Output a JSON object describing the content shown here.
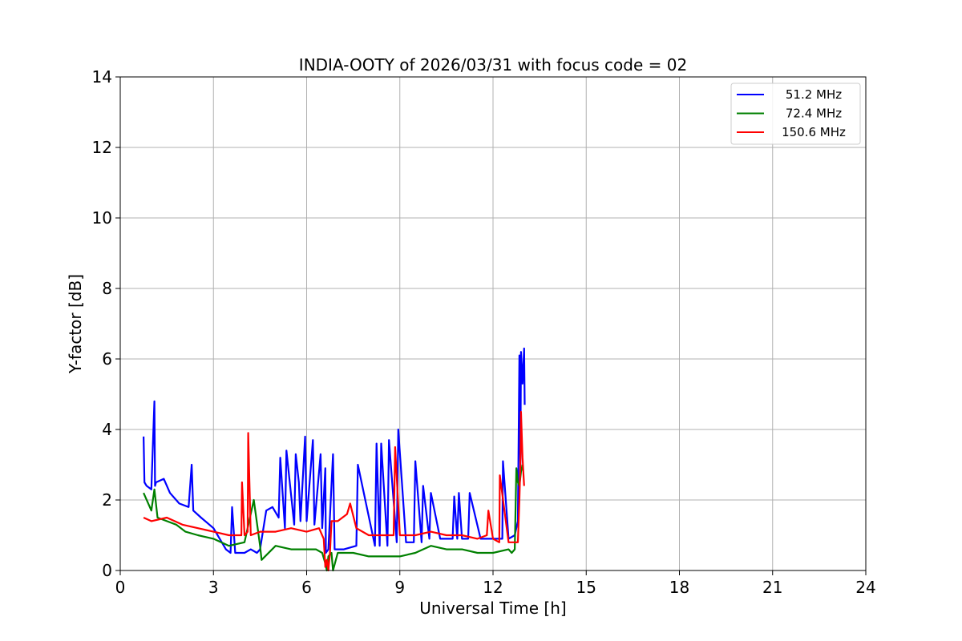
{
  "chart_data": {
    "type": "line",
    "title": "INDIA-OOTY of 2026/03/31 with focus code = 02",
    "xlabel": "Universal Time [h]",
    "ylabel": "Y-factor [dB]",
    "xlim": [
      0,
      24
    ],
    "ylim": [
      0,
      14
    ],
    "xticks": [
      0,
      3,
      6,
      9,
      12,
      15,
      18,
      21,
      24
    ],
    "yticks": [
      0,
      2,
      4,
      6,
      8,
      10,
      12,
      14
    ],
    "grid": true,
    "legend_position": "top-right",
    "series": [
      {
        "name": "51.2 MHz",
        "color": "#0000ff",
        "x": [
          0.75,
          0.78,
          0.85,
          1.0,
          1.1,
          1.12,
          1.15,
          1.4,
          1.6,
          1.9,
          2.2,
          2.3,
          2.35,
          2.6,
          3.0,
          3.4,
          3.55,
          3.6,
          3.7,
          4.0,
          4.2,
          4.4,
          4.5,
          4.7,
          4.9,
          5.1,
          5.15,
          5.3,
          5.35,
          5.6,
          5.65,
          5.75,
          5.8,
          5.95,
          6.0,
          6.2,
          6.25,
          6.45,
          6.5,
          6.6,
          6.62,
          6.7,
          6.85,
          6.9,
          7.2,
          7.6,
          7.65,
          8.2,
          8.25,
          8.35,
          8.4,
          8.6,
          8.65,
          8.9,
          8.95,
          9.2,
          9.45,
          9.5,
          9.7,
          9.75,
          9.95,
          10.0,
          10.3,
          10.7,
          10.75,
          10.85,
          10.9,
          11.0,
          11.2,
          11.25,
          11.6,
          11.8,
          12.0,
          12.3,
          12.32,
          12.5,
          12.7,
          12.8,
          12.85,
          12.88,
          12.9,
          12.95,
          13.0,
          13.02
        ],
        "y": [
          3.8,
          2.5,
          2.4,
          2.3,
          4.8,
          2.4,
          2.5,
          2.6,
          2.2,
          1.9,
          1.8,
          3.0,
          1.7,
          1.5,
          1.2,
          0.6,
          0.5,
          1.8,
          0.5,
          0.5,
          0.6,
          0.5,
          0.6,
          1.7,
          1.8,
          1.5,
          3.2,
          1.2,
          3.4,
          1.3,
          3.3,
          2.5,
          1.4,
          3.8,
          1.4,
          3.7,
          1.3,
          3.3,
          1.2,
          2.9,
          0.5,
          0.6,
          3.3,
          0.6,
          0.6,
          0.7,
          3.0,
          0.7,
          3.6,
          0.7,
          3.6,
          0.7,
          3.7,
          0.8,
          4.0,
          0.8,
          0.8,
          3.1,
          0.8,
          2.4,
          0.9,
          2.2,
          0.9,
          0.9,
          2.1,
          0.9,
          2.2,
          0.9,
          0.9,
          2.2,
          0.9,
          0.9,
          0.9,
          0.9,
          3.1,
          0.9,
          1.0,
          1.4,
          6.1,
          3.0,
          6.2,
          5.3,
          6.3,
          4.7
        ]
      },
      {
        "name": "72.4 MHz",
        "color": "#008000",
        "x": [
          0.75,
          1.0,
          1.1,
          1.2,
          1.5,
          1.8,
          2.1,
          2.5,
          3.0,
          3.5,
          4.0,
          4.3,
          4.5,
          4.55,
          5.0,
          5.5,
          6.0,
          6.3,
          6.5,
          6.6,
          6.65,
          6.7,
          6.8,
          6.85,
          7.0,
          7.5,
          8.0,
          8.5,
          9.0,
          9.5,
          10.0,
          10.5,
          11.0,
          11.5,
          12.0,
          12.5,
          12.6,
          12.7,
          12.75,
          12.8,
          12.85,
          12.9,
          12.95
        ],
        "y": [
          2.2,
          1.7,
          2.3,
          1.5,
          1.4,
          1.3,
          1.1,
          1.0,
          0.9,
          0.7,
          0.8,
          2.0,
          0.7,
          0.3,
          0.7,
          0.6,
          0.6,
          0.6,
          0.5,
          0.2,
          0.0,
          0.4,
          0.5,
          0.0,
          0.5,
          0.5,
          0.4,
          0.4,
          0.4,
          0.5,
          0.7,
          0.6,
          0.6,
          0.5,
          0.5,
          0.6,
          0.5,
          0.6,
          2.9,
          2.5,
          2.4,
          2.8,
          3.0
        ]
      },
      {
        "name": "150.6 MHz",
        "color": "#ff0000",
        "x": [
          0.75,
          1.0,
          1.5,
          2.0,
          2.5,
          3.0,
          3.5,
          3.9,
          3.92,
          4.0,
          4.1,
          4.12,
          4.2,
          4.5,
          5.0,
          5.5,
          6.0,
          6.4,
          6.55,
          6.6,
          6.65,
          6.7,
          6.75,
          6.8,
          7.0,
          7.3,
          7.4,
          7.6,
          8.0,
          8.5,
          8.8,
          8.85,
          9.0,
          9.5,
          10.0,
          10.5,
          11.0,
          11.5,
          11.8,
          11.85,
          12.0,
          12.2,
          12.22,
          12.5,
          12.8,
          12.85,
          12.88,
          12.9,
          12.95,
          13.0
        ],
        "y": [
          1.5,
          1.4,
          1.5,
          1.3,
          1.2,
          1.1,
          1.0,
          1.0,
          2.5,
          1.0,
          1.1,
          3.9,
          1.0,
          1.1,
          1.1,
          1.2,
          1.1,
          1.2,
          0.9,
          0.1,
          0.3,
          0.0,
          0.5,
          1.4,
          1.4,
          1.6,
          1.9,
          1.2,
          1.0,
          1.0,
          1.0,
          3.5,
          1.0,
          1.0,
          1.1,
          1.0,
          1.0,
          0.9,
          1.0,
          1.7,
          0.9,
          0.8,
          2.7,
          0.8,
          0.8,
          2.0,
          3.0,
          4.5,
          3.2,
          2.4
        ]
      }
    ]
  }
}
